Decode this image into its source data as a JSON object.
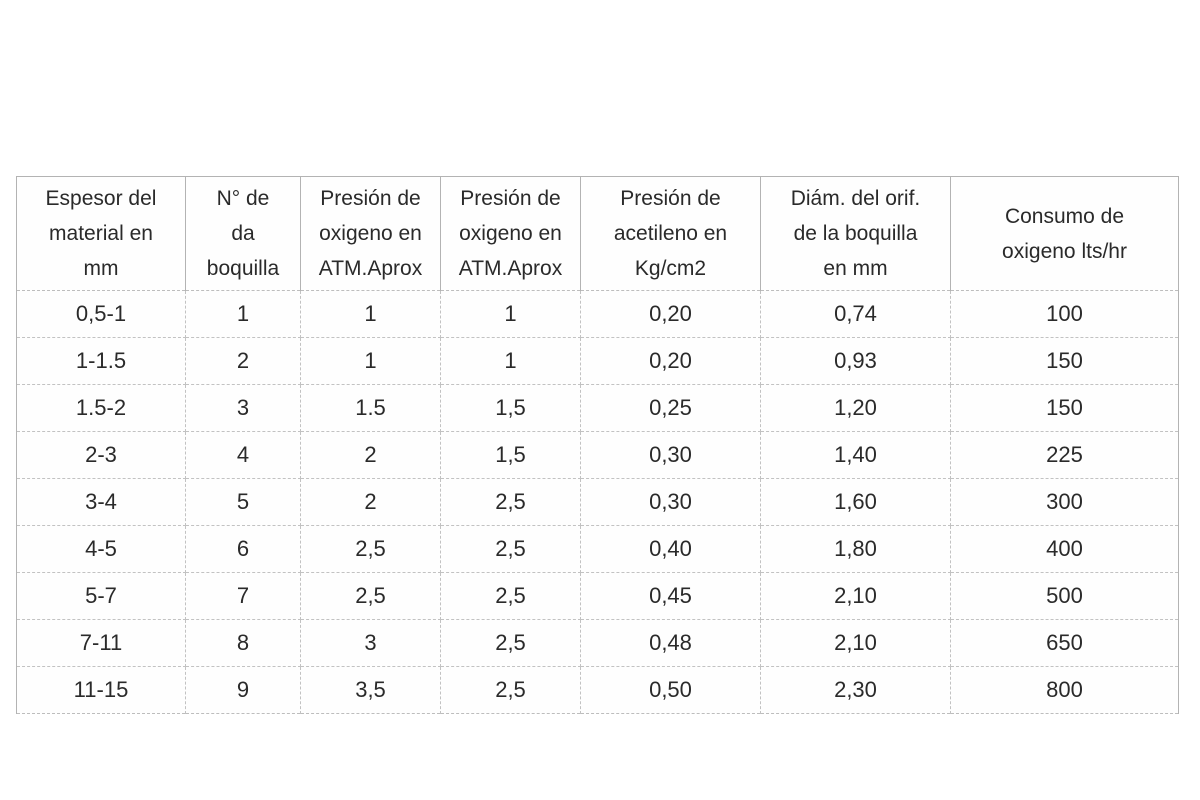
{
  "colors": {
    "background": "#ffffff",
    "text": "#2a2a2a",
    "border_solid": "#b3b3b3",
    "border_dashed": "#c2c2c2"
  },
  "table": {
    "headers": [
      {
        "label": "Espesor del\nmaterial en\nmm"
      },
      {
        "label": "N° de\nda\nboquilla"
      },
      {
        "label": "Presión de\noxigeno en\nATM.Aprox"
      },
      {
        "label": "Presión de\noxigeno en\nATM.Aprox"
      },
      {
        "label": "Presión de\nacetileno en\nKg/cm2"
      },
      {
        "label": "Diám. del orif.\nde la boquilla\nen mm"
      },
      {
        "label": "Consumo de\noxigeno lts/hr"
      }
    ],
    "rows": [
      [
        "0,5-1",
        "1",
        "1",
        "1",
        "0,20",
        "0,74",
        "100"
      ],
      [
        "1-1.5",
        "2",
        "1",
        "1",
        "0,20",
        "0,93",
        "150"
      ],
      [
        "1.5-2",
        "3",
        "1.5",
        "1,5",
        "0,25",
        "1,20",
        "150"
      ],
      [
        "2-3",
        "4",
        "2",
        "1,5",
        "0,30",
        "1,40",
        "225"
      ],
      [
        "3-4",
        "5",
        "2",
        "2,5",
        "0,30",
        "1,60",
        "300"
      ],
      [
        "4-5",
        "6",
        "2,5",
        "2,5",
        "0,40",
        "1,80",
        "400"
      ],
      [
        "5-7",
        "7",
        "2,5",
        "2,5",
        "0,45",
        "2,10",
        "500"
      ],
      [
        "7-11",
        "8",
        "3",
        "2,5",
        "0,48",
        "2,10",
        "650"
      ],
      [
        "11-15",
        "9",
        "3,5",
        "2,5",
        "0,50",
        "2,30",
        "800"
      ]
    ]
  }
}
